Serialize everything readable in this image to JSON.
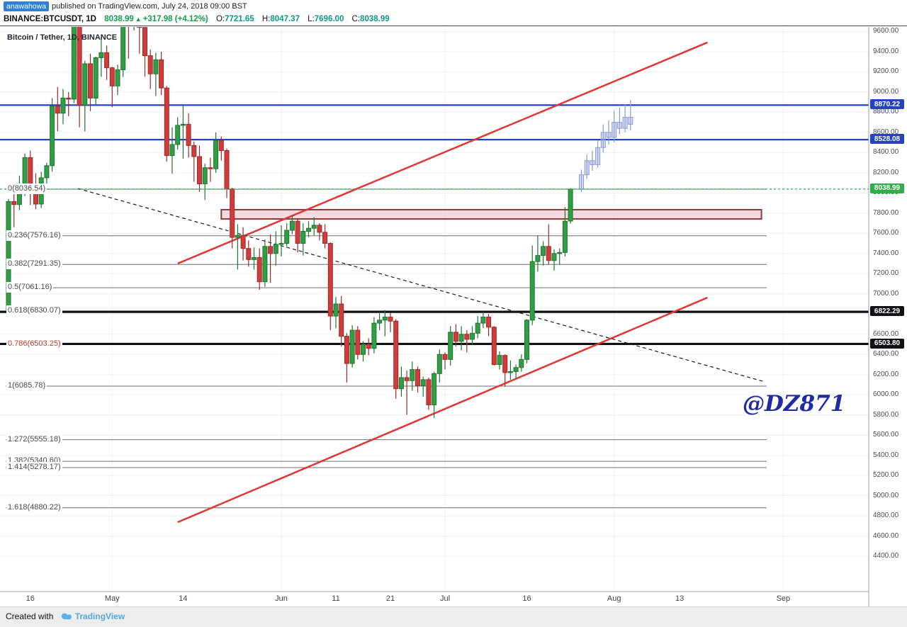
{
  "header": {
    "username": "anawahowa",
    "published_text": "published on TradingView.com, July 24, 2018 09:00 BST"
  },
  "toolbar": {
    "symbol": "BINANCE:BTCUSDT, 1D",
    "last_price": "8038.99",
    "arrow": "▲",
    "change": "+317.98 (+4.12%)",
    "ohlc": [
      {
        "label": "O:",
        "value": "7721.65"
      },
      {
        "label": "H:",
        "value": "8047.37"
      },
      {
        "label": "L:",
        "value": "7696.00"
      },
      {
        "label": "C:",
        "value": "8038.99"
      }
    ]
  },
  "chart_watermark": "Bitcoin / Tether, 1D, BINANCE",
  "handle_watermark": "@DZ871",
  "footer": {
    "created_with": "Created with",
    "logo_text": "TradingView"
  },
  "chart_data": {
    "type": "candlestick",
    "exchange": "BINANCE",
    "pair": "BTCUSDT",
    "interval": "1D",
    "ylim": [
      4050,
      9645
    ],
    "y_ticks": [
      9600,
      9400,
      9200,
      9000,
      8800,
      8600,
      8400,
      8200,
      8000,
      7800,
      7600,
      7400,
      7200,
      7000,
      6800,
      6600,
      6400,
      6200,
      6000,
      5800,
      5600,
      5400,
      5200,
      5000,
      4800,
      4600,
      4400
    ],
    "x_ticks": [
      {
        "label": "16",
        "day": 4
      },
      {
        "label": "May",
        "day": 19
      },
      {
        "label": "14",
        "day": 32
      },
      {
        "label": "Jun",
        "day": 50
      },
      {
        "label": "11",
        "day": 60
      },
      {
        "label": "21",
        "day": 70
      },
      {
        "label": "Jul",
        "day": 80
      },
      {
        "label": "16",
        "day": 95
      },
      {
        "label": "Aug",
        "day": 111
      },
      {
        "label": "13",
        "day": 123
      },
      {
        "label": "Sep",
        "day": 142
      }
    ],
    "grid_days": [
      19,
      50,
      80,
      111,
      142
    ],
    "current_price": 8038.99,
    "h_lines": [
      {
        "price": 8870.22,
        "color": "#2742c0",
        "width": 2.2
      },
      {
        "price": 8528.08,
        "color": "#2742c0",
        "width": 2.2
      },
      {
        "price": 6822.29,
        "color": "#101114",
        "width": 3.2
      },
      {
        "price": 6503.8,
        "color": "#101114",
        "width": 3.2
      }
    ],
    "price_chips": [
      {
        "value": 8870.22,
        "bg": "#2742c0"
      },
      {
        "value": 8528.08,
        "bg": "#2742c0"
      },
      {
        "value": 8038.99,
        "bg": "#2fae49"
      },
      {
        "value": 6822.29,
        "bg": "#101114"
      },
      {
        "value": 6503.8,
        "bg": "#101114"
      }
    ],
    "fib_levels": [
      {
        "label": "0",
        "price": 8036.54
      },
      {
        "label": "0.236",
        "price": 7576.16
      },
      {
        "label": "0.382",
        "price": 7291.35
      },
      {
        "label": "0.5",
        "price": 7061.16
      },
      {
        "label": "0.618",
        "price": 6830.07
      },
      {
        "label": "0.786",
        "price": 6503.25,
        "color": "#c0392b"
      },
      {
        "label": "1",
        "price": 6085.78
      },
      {
        "label": "1.272",
        "price": 5555.18
      },
      {
        "label": "1.382",
        "price": 5340.6
      },
      {
        "label": "1.414",
        "price": 5278.17
      },
      {
        "label": "1.618",
        "price": 4880.22
      }
    ],
    "trendlines": [
      {
        "name": "rising-resistance-line",
        "color": "#e03636",
        "width": 2.5,
        "d1": 31,
        "p1": 7300,
        "d2": 128.1,
        "p2": 9491
      },
      {
        "name": "rising-support-line",
        "color": "#e03636",
        "width": 2.5,
        "d1": 31,
        "p1": 4737,
        "d2": 128.1,
        "p2": 6963
      },
      {
        "name": "descending-dashed-trendline",
        "color": "#1c1c1c",
        "width": 1.2,
        "dash": "5 4",
        "d1": 12.7,
        "p1": 8044,
        "d2": 138.7,
        "p2": 6127
      }
    ],
    "zone": {
      "d1": 39,
      "d2": 138,
      "p_top": 7834,
      "p_bottom": 7742,
      "stroke": "#8d3a3a",
      "fill": "rgba(234,190,196,0.55)"
    },
    "colors": {
      "up": "#2f9e44",
      "up_border": "#20752f",
      "down": "#d13b3b",
      "down_border": "#9e2b2b",
      "projected": "#8b99d6",
      "projected_fill": "rgba(160,172,224,0.45)",
      "current_line": "#2fbf57",
      "grid": "#edeff3"
    },
    "candles": [
      [
        6830,
        7940,
        6780,
        7915
      ],
      [
        7915,
        8055,
        7660,
        7885
      ],
      [
        7885,
        8170,
        7830,
        8005
      ],
      [
        8005,
        8390,
        7970,
        8350
      ],
      [
        8350,
        8420,
        7880,
        8050
      ],
      [
        8050,
        8195,
        7840,
        7890
      ],
      [
        7890,
        8210,
        7850,
        8150
      ],
      [
        8150,
        8300,
        8090,
        8270
      ],
      [
        8270,
        8940,
        8210,
        8860
      ],
      [
        8860,
        9050,
        8610,
        8790
      ],
      [
        8790,
        9030,
        8680,
        8940
      ],
      [
        8940,
        9000,
        8760,
        8930
      ],
      [
        8930,
        9760,
        8890,
        9650
      ],
      [
        9650,
        9770,
        8650,
        8870
      ],
      [
        8870,
        9310,
        8610,
        9280
      ],
      [
        9280,
        9380,
        8810,
        8940
      ],
      [
        8940,
        9350,
        8870,
        9340
      ],
      [
        9340,
        9550,
        9150,
        9390
      ],
      [
        9390,
        9460,
        9120,
        9240
      ],
      [
        9240,
        9250,
        8850,
        9060
      ],
      [
        9060,
        9270,
        8970,
        9220
      ],
      [
        9220,
        9800,
        9150,
        9740
      ],
      [
        9740,
        9790,
        9330,
        9690
      ],
      [
        9690,
        9940,
        9610,
        9830
      ],
      [
        9830,
        9850,
        9380,
        9640
      ],
      [
        9640,
        9670,
        9150,
        9360
      ],
      [
        9360,
        9420,
        9030,
        9180
      ],
      [
        9180,
        9390,
        8960,
        9320
      ],
      [
        9320,
        9400,
        8970,
        9040
      ],
      [
        9040,
        9060,
        8310,
        8370
      ],
      [
        8370,
        8650,
        8190,
        8480
      ],
      [
        8480,
        8750,
        8430,
        8670
      ],
      [
        8670,
        8880,
        8340,
        8680
      ],
      [
        8680,
        8790,
        8350,
        8470
      ],
      [
        8470,
        8510,
        8110,
        8360
      ],
      [
        8360,
        8470,
        8010,
        8090
      ],
      [
        8090,
        8290,
        7930,
        8250
      ],
      [
        8250,
        8350,
        8110,
        8240
      ],
      [
        8240,
        8600,
        8200,
        8520
      ],
      [
        8520,
        8560,
        8320,
        8420
      ],
      [
        8420,
        8440,
        7950,
        8040
      ],
      [
        8040,
        8050,
        7450,
        7560
      ],
      [
        7560,
        7690,
        7240,
        7580
      ],
      [
        7580,
        7660,
        7330,
        7450
      ],
      [
        7450,
        7530,
        7270,
        7340
      ],
      [
        7340,
        7460,
        7240,
        7360
      ],
      [
        7360,
        7450,
        7040,
        7120
      ],
      [
        7120,
        7540,
        7070,
        7470
      ],
      [
        7470,
        7590,
        7110,
        7400
      ],
      [
        7400,
        7620,
        7280,
        7490
      ],
      [
        7490,
        7680,
        7370,
        7500
      ],
      [
        7500,
        7700,
        7470,
        7630
      ],
      [
        7630,
        7780,
        7590,
        7720
      ],
      [
        7720,
        7750,
        7410,
        7500
      ],
      [
        7500,
        7700,
        7380,
        7620
      ],
      [
        7620,
        7720,
        7560,
        7650
      ],
      [
        7650,
        7760,
        7580,
        7680
      ],
      [
        7680,
        7700,
        7530,
        7610
      ],
      [
        7610,
        7690,
        7450,
        7500
      ],
      [
        7500,
        7510,
        6640,
        6780
      ],
      [
        6780,
        6970,
        6660,
        6900
      ],
      [
        6900,
        6980,
        6480,
        6580
      ],
      [
        6580,
        6610,
        6120,
        6310
      ],
      [
        6310,
        6690,
        6270,
        6640
      ],
      [
        6640,
        6680,
        6350,
        6400
      ],
      [
        6400,
        6530,
        6330,
        6500
      ],
      [
        6500,
        6560,
        6390,
        6460
      ],
      [
        6460,
        6770,
        6410,
        6710
      ],
      [
        6710,
        6820,
        6640,
        6740
      ],
      [
        6740,
        6840,
        6580,
        6770
      ],
      [
        6770,
        6810,
        6620,
        6730
      ],
      [
        6730,
        6750,
        5960,
        6060
      ],
      [
        6060,
        6280,
        5980,
        6170
      ],
      [
        6170,
        6240,
        5800,
        6140
      ],
      [
        6140,
        6330,
        6040,
        6250
      ],
      [
        6250,
        6280,
        6020,
        6090
      ],
      [
        6090,
        6180,
        5980,
        6150
      ],
      [
        6150,
        6170,
        5850,
        5900
      ],
      [
        5900,
        6230,
        5770,
        6210
      ],
      [
        6210,
        6450,
        6120,
        6400
      ],
      [
        6400,
        6420,
        6250,
        6350
      ],
      [
        6350,
        6680,
        6290,
        6620
      ],
      [
        6620,
        6700,
        6480,
        6530
      ],
      [
        6530,
        6680,
        6440,
        6600
      ],
      [
        6600,
        6640,
        6420,
        6550
      ],
      [
        6550,
        6680,
        6500,
        6610
      ],
      [
        6610,
        6780,
        6560,
        6710
      ],
      [
        6710,
        6820,
        6660,
        6770
      ],
      [
        6770,
        6800,
        6580,
        6670
      ],
      [
        6670,
        6680,
        6290,
        6300
      ],
      [
        6300,
        6430,
        6250,
        6390
      ],
      [
        6390,
        6400,
        6080,
        6220
      ],
      [
        6220,
        6340,
        6150,
        6230
      ],
      [
        6230,
        6300,
        6160,
        6270
      ],
      [
        6270,
        6400,
        6230,
        6350
      ],
      [
        6350,
        6750,
        6310,
        6740
      ],
      [
        6740,
        7480,
        6690,
        7320
      ],
      [
        7320,
        7580,
        7220,
        7380
      ],
      [
        7380,
        7520,
        7280,
        7470
      ],
      [
        7470,
        7690,
        7290,
        7330
      ],
      [
        7330,
        7440,
        7230,
        7400
      ],
      [
        7400,
        7450,
        7290,
        7410
      ],
      [
        7410,
        7860,
        7370,
        7720
      ],
      [
        7721.65,
        8047.37,
        7696,
        8038.99
      ]
    ],
    "projected": {
      "start_day": 105,
      "candles": [
        [
          8040,
          8230,
          8010,
          8180
        ],
        [
          8180,
          8380,
          8140,
          8320
        ],
        [
          8320,
          8420,
          8220,
          8280
        ],
        [
          8280,
          8520,
          8250,
          8450
        ],
        [
          8450,
          8680,
          8400,
          8600
        ],
        [
          8600,
          8720,
          8480,
          8550
        ],
        [
          8550,
          8820,
          8500,
          8700
        ],
        [
          8700,
          8850,
          8580,
          8640
        ],
        [
          8640,
          8880,
          8600,
          8750
        ],
        [
          8750,
          8920,
          8620,
          8680
        ]
      ]
    }
  }
}
